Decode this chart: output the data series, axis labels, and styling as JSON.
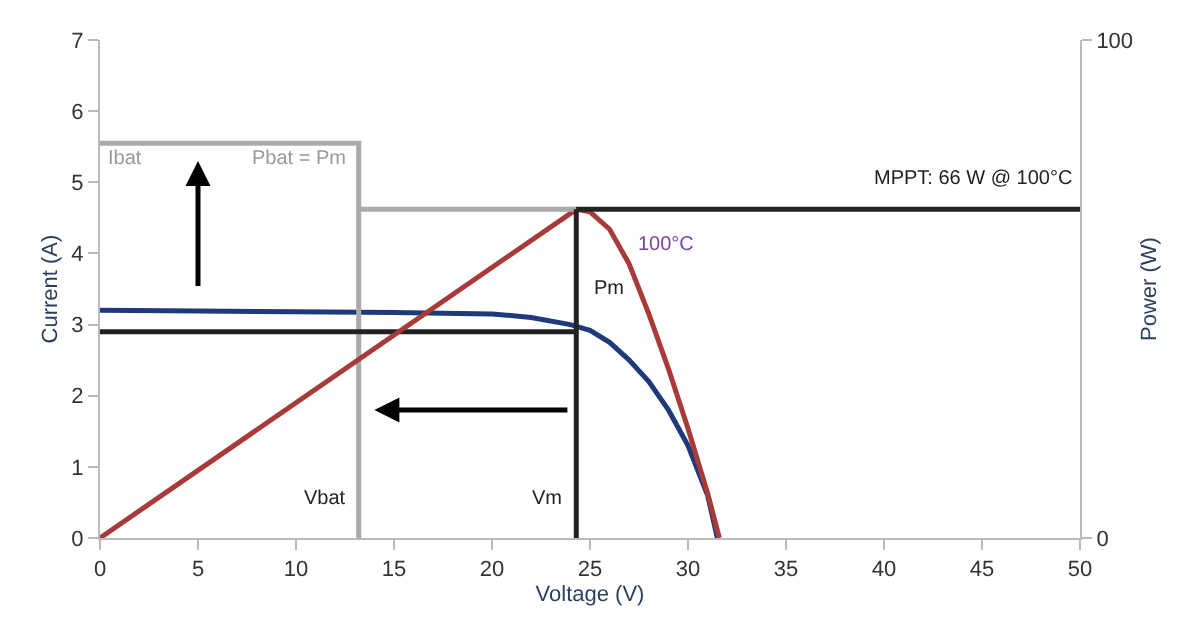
{
  "chart_data": {
    "type": "line",
    "xlabel": "Voltage (V)",
    "ylabel": "Current (A)",
    "y2label": "Power (W)",
    "xlim": [
      0,
      50
    ],
    "xticks": [
      0,
      5,
      10,
      15,
      20,
      25,
      30,
      35,
      40,
      45,
      50
    ],
    "ylim": [
      0,
      7
    ],
    "yticks": [
      0,
      1,
      2,
      3,
      4,
      5,
      6,
      7
    ],
    "y2lim": [
      0,
      100
    ],
    "y2ticks": [
      0,
      100
    ],
    "marker": "none",
    "line_style": "solid",
    "series": [
      {
        "color": "#1f3a7a",
        "x": [
          0,
          5,
          10,
          15,
          20,
          22,
          24,
          25,
          26,
          27,
          28,
          29,
          30,
          31,
          31.5
        ],
        "values": [
          3.2,
          3.19,
          3.18,
          3.17,
          3.15,
          3.1,
          3.0,
          2.92,
          2.75,
          2.5,
          2.2,
          1.8,
          1.3,
          0.6,
          0
        ]
      },
      {
        "color": "#a83a3a",
        "axis": "y2",
        "x": [
          0,
          24.3,
          25,
          26,
          27,
          28,
          29,
          30,
          31,
          31.6
        ],
        "values": [
          0,
          66,
          65.5,
          62,
          55,
          45,
          34,
          22,
          9,
          0
        ]
      },
      {
        "color": "#aaaaaa",
        "x": [
          0,
          13.2,
          13.2
        ],
        "values": [
          5.55,
          5.55,
          0
        ]
      },
      {
        "color": "#aaaaaa",
        "axis": "y2",
        "x": [
          13.2,
          24.3
        ],
        "values": [
          66,
          66
        ]
      },
      {
        "color": "#222222",
        "axis": "y2",
        "x": [
          24.3,
          50
        ],
        "values": [
          66,
          66
        ]
      },
      {
        "color": "#222222",
        "axis": "y2",
        "x": [
          24.3,
          24.3
        ],
        "values": [
          0,
          66
        ]
      },
      {
        "color": "#222222",
        "x": [
          0,
          24.3
        ],
        "values": [
          2.9,
          2.9
        ]
      }
    ],
    "annotations": [
      "Ibat",
      "Pbat = Pm",
      "Vbat",
      "Vm",
      "Pm",
      "100°C",
      "MPPT: 66 W @ 100°C"
    ]
  }
}
